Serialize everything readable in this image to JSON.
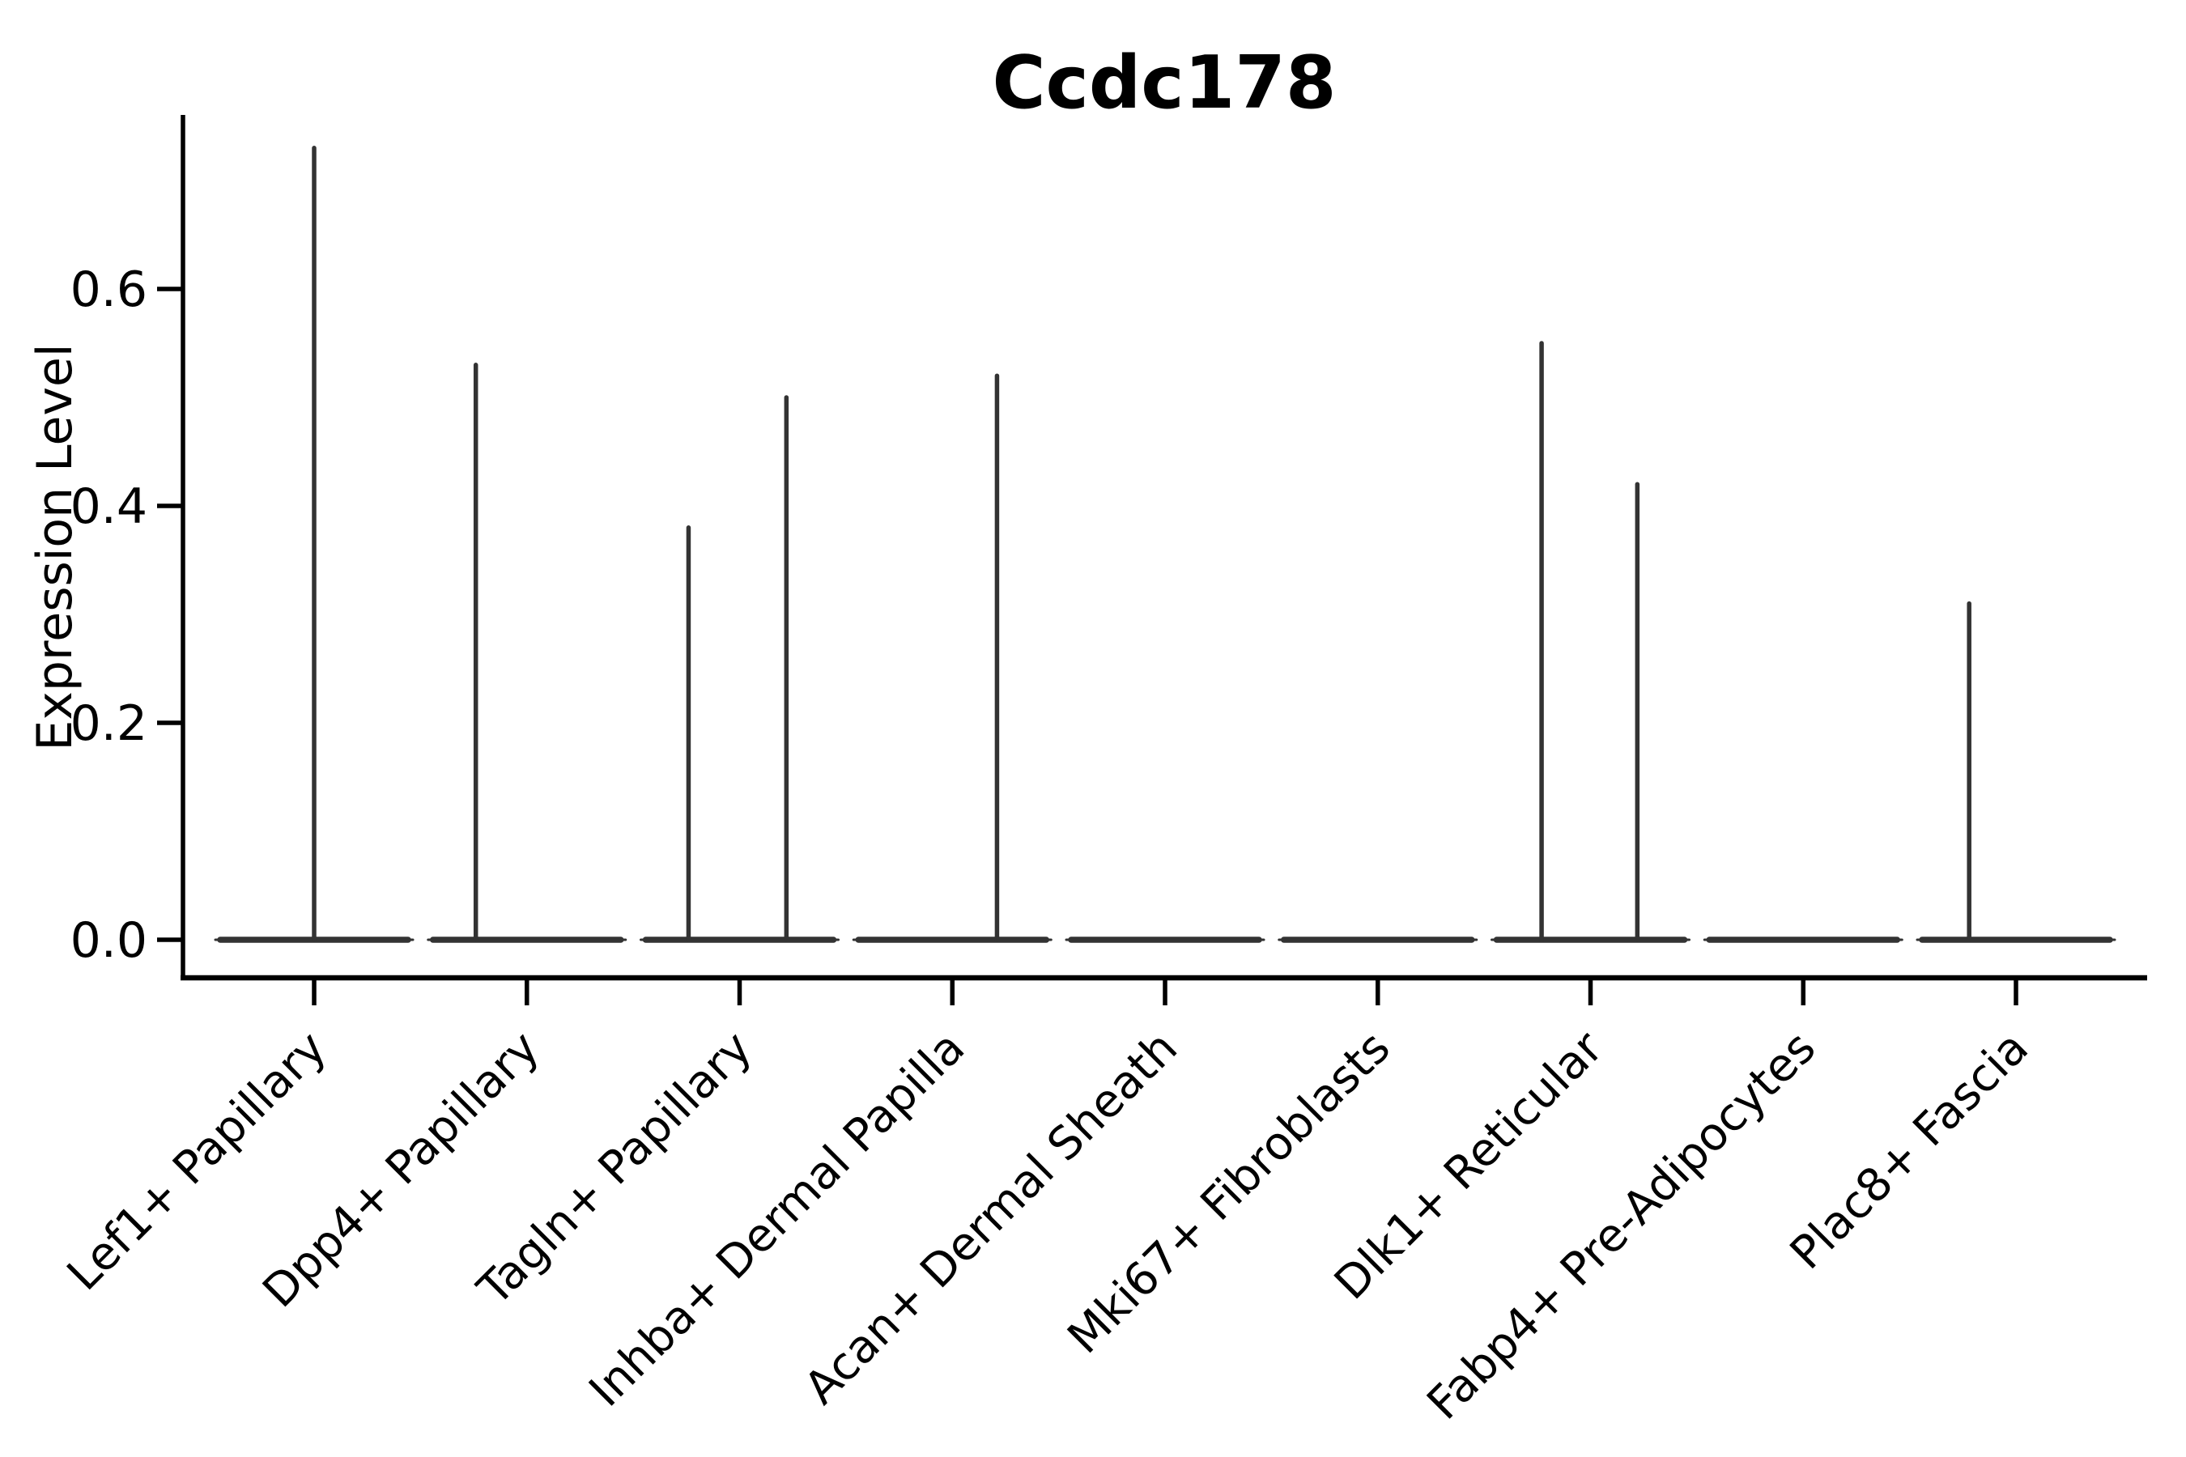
{
  "title": "Ccdc178",
  "axes": {
    "ylabel": "Expression Level",
    "ytick_labels": [
      "0.0",
      "0.2",
      "0.4",
      "0.6"
    ]
  },
  "chart_data": {
    "type": "violin",
    "title": "Ccdc178",
    "xlabel": "",
    "ylabel": "Expression Level",
    "ylim": [
      -0.04,
      0.76
    ],
    "yticks": [
      0.0,
      0.2,
      0.4,
      0.6
    ],
    "grid": false,
    "legend": "none",
    "categories": [
      "Lef1+ Papillary",
      "Dpp4+ Papillary",
      "Tagln+ Papillary",
      "Inhba+ Dermal Papilla",
      "Acan+ Dermal Sheath",
      "Mki67+ Fibroblasts",
      "Dlk1+ Reticular",
      "Fabp4+ Pre-Adipocytes",
      "Plac8+ Fascia"
    ],
    "description": "Each violin is a flat dense mass at expression 0 with thin vertical spikes reaching the max expression of rare positive cells.",
    "violins": [
      {
        "category": "Lef1+ Papillary",
        "bulk_at": 0.0,
        "spikes": [
          {
            "offset": 0.0,
            "value": 0.73
          }
        ]
      },
      {
        "category": "Dpp4+ Papillary",
        "bulk_at": 0.0,
        "spikes": [
          {
            "offset": -0.24,
            "value": 0.53
          }
        ]
      },
      {
        "category": "Tagln+ Papillary",
        "bulk_at": 0.0,
        "spikes": [
          {
            "offset": -0.24,
            "value": 0.38
          },
          {
            "offset": 0.22,
            "value": 0.5
          }
        ]
      },
      {
        "category": "Inhba+ Dermal Papilla",
        "bulk_at": 0.0,
        "spikes": [
          {
            "offset": 0.21,
            "value": 0.52
          }
        ]
      },
      {
        "category": "Acan+ Dermal Sheath",
        "bulk_at": 0.0,
        "spikes": []
      },
      {
        "category": "Mki67+ Fibroblasts",
        "bulk_at": 0.0,
        "spikes": []
      },
      {
        "category": "Dlk1+ Reticular",
        "bulk_at": 0.0,
        "spikes": [
          {
            "offset": -0.23,
            "value": 0.55
          },
          {
            "offset": 0.22,
            "value": 0.42
          }
        ]
      },
      {
        "category": "Fabp4+ Pre-Adipocytes",
        "bulk_at": 0.0,
        "spikes": []
      },
      {
        "category": "Plac8+ Fascia",
        "bulk_at": 0.0,
        "spikes": [
          {
            "offset": -0.22,
            "value": 0.31
          }
        ]
      }
    ],
    "violin_color": "#333333",
    "axis_color": "#000000"
  }
}
